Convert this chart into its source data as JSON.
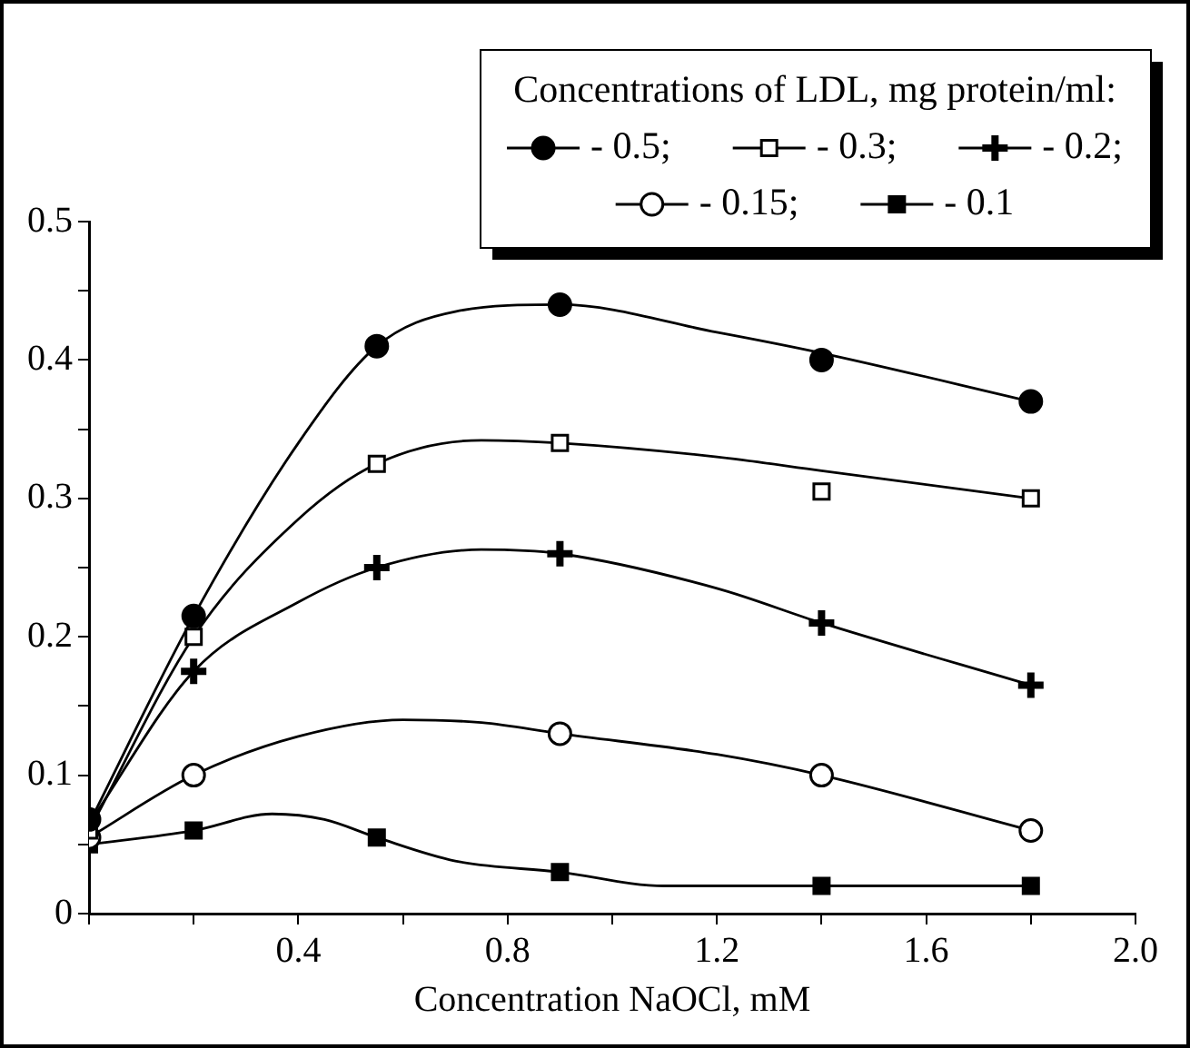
{
  "chart_data": {
    "type": "scatter",
    "xlabel": "Concentration NaOCl, mM",
    "legend_title": "Concentrations of LDL, mg protein/ml:",
    "legend": "top right",
    "xlim": [
      0,
      2
    ],
    "ylim": [
      0,
      0.5
    ],
    "xticks": [
      {
        "value": 0,
        "label": null
      },
      {
        "value": 0.2,
        "label": null
      },
      0.4,
      {
        "value": 0.6,
        "label": null
      },
      0.8,
      {
        "value": 1.0,
        "label": null
      },
      1.2,
      {
        "value": 1.4,
        "label": null
      },
      1.6,
      {
        "value": 1.8,
        "label": null
      },
      {
        "value": 2,
        "label": "2.0"
      }
    ],
    "yticks": [
      0,
      {
        "value": 0.05,
        "label": null
      },
      0.1,
      {
        "value": 0.15,
        "label": null
      },
      0.2,
      {
        "value": 0.25,
        "label": null
      },
      0.3,
      {
        "value": 0.35,
        "label": null
      },
      0.4,
      {
        "value": 0.45,
        "label": null
      },
      0.5
    ],
    "grid": false,
    "x": [
      0,
      0.2,
      0.55,
      0.9,
      1.4,
      1.8
    ],
    "series": [
      {
        "name": "- 0.5;",
        "color": "#000000",
        "marker": "circle",
        "values": [
          0.068,
          0.215,
          0.41,
          0.44,
          0.4,
          0.37
        ]
      },
      {
        "name": "- 0.3;",
        "color": "#ffffff",
        "marker": "square",
        "values": [
          0.06,
          0.2,
          0.325,
          0.34,
          0.305,
          0.3
        ]
      },
      {
        "name": "- 0.2;",
        "color": "#000000",
        "marker": "cross",
        "values": [
          null,
          0.175,
          0.25,
          0.26,
          0.21,
          0.165
        ]
      },
      {
        "name": "- 0.15;",
        "color": "#ffffff",
        "marker": "circle",
        "values": [
          0.055,
          0.1,
          null,
          0.13,
          0.1,
          0.06
        ]
      },
      {
        "name": "- 0.1",
        "color": "#000000",
        "marker": "square",
        "values": [
          0.05,
          0.06,
          0.055,
          0.03,
          0.02,
          0.02
        ]
      },
      {
        "type": "line",
        "color": "#000000",
        "marker": "none",
        "x": [
          0,
          0.2,
          0.4,
          0.55,
          0.7,
          0.9,
          1.2,
          1.4,
          1.8
        ],
        "values": [
          0.065,
          0.215,
          0.34,
          0.41,
          0.435,
          0.44,
          0.42,
          0.405,
          0.37
        ]
      },
      {
        "type": "line",
        "color": "#000000",
        "marker": "none",
        "x": [
          0,
          0.2,
          0.4,
          0.55,
          0.75,
          0.9,
          1.2,
          1.4,
          1.8
        ],
        "values": [
          0.06,
          0.2,
          0.285,
          0.325,
          0.342,
          0.34,
          0.33,
          0.32,
          0.3
        ]
      },
      {
        "type": "line",
        "color": "#000000",
        "marker": "none",
        "x": [
          0,
          0.2,
          0.4,
          0.55,
          0.75,
          0.9,
          1.2,
          1.4,
          1.8
        ],
        "values": [
          0.065,
          0.175,
          0.225,
          0.25,
          0.263,
          0.26,
          0.235,
          0.21,
          0.165
        ]
      },
      {
        "type": "line",
        "color": "#000000",
        "marker": "none",
        "x": [
          0,
          0.2,
          0.4,
          0.6,
          0.75,
          0.9,
          1.2,
          1.4,
          1.8
        ],
        "values": [
          0.055,
          0.1,
          0.128,
          0.14,
          0.138,
          0.13,
          0.115,
          0.1,
          0.06
        ]
      },
      {
        "type": "line",
        "color": "#000000",
        "marker": "none",
        "x": [
          0,
          0.2,
          0.35,
          0.45,
          0.55,
          0.7,
          0.9,
          1.1,
          1.4,
          1.8
        ],
        "values": [
          0.05,
          0.06,
          0.072,
          0.068,
          0.055,
          0.038,
          0.03,
          0.02,
          0.02,
          0.02
        ]
      }
    ]
  }
}
